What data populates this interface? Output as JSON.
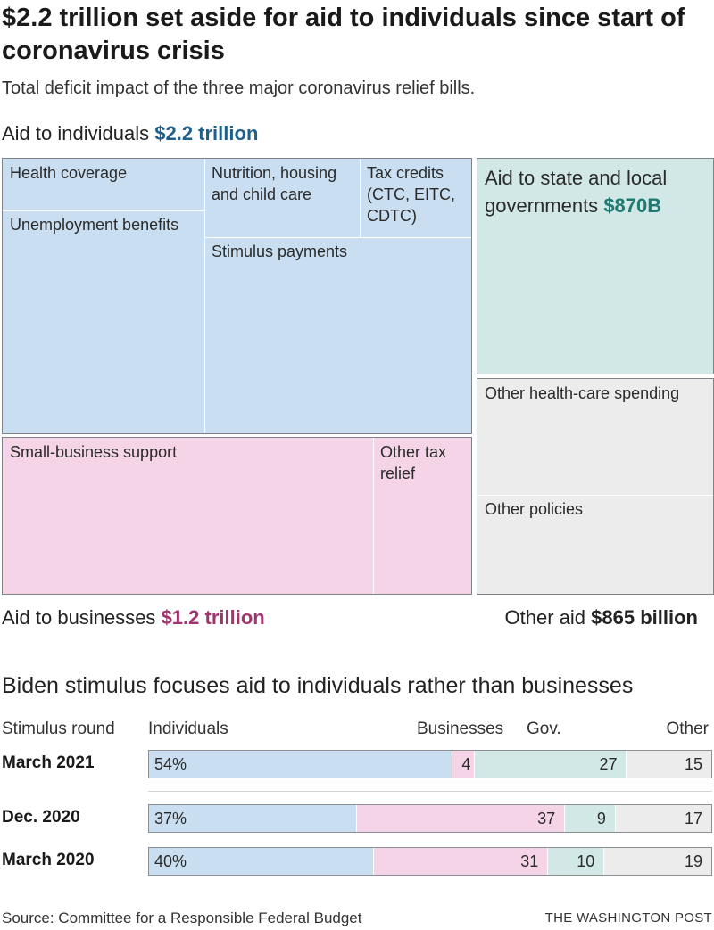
{
  "headline": "$2.2 trillion set aside for aid to individuals since start of coronavirus crisis",
  "subhead": "Total deficit impact of the three major coronavirus relief bills.",
  "colors": {
    "individuals": "#c9dff1",
    "businesses": "#f4d4e6",
    "government": "#d2e8e7",
    "other": "#ececec",
    "individuals_text": "#1f5f8b",
    "businesses_text": "#a2346d",
    "government_text": "#1f7a73",
    "other_text": "#333333"
  },
  "treemap": {
    "individuals": {
      "label": "Aid to individuals",
      "amount": "$2.2 trillion",
      "items": [
        "Health coverage",
        "Unemployment benefits",
        "Nutrition, housing and child care",
        "Tax credits (CTC, EITC, CDTC)",
        "Stimulus payments"
      ]
    },
    "businesses": {
      "label": "Aid to businesses",
      "amount": "$1.2 trillion",
      "items": [
        "Small-business support",
        "Other tax relief"
      ]
    },
    "government": {
      "label": "Aid to state and local governments",
      "amount": "$870B"
    },
    "other": {
      "label": "Other aid",
      "amount": "$865 billion",
      "items": [
        "Other health-care spending",
        "Other policies"
      ]
    }
  },
  "section2": {
    "title": "Biden stimulus focuses aid to individuals rather than businesses",
    "headers": {
      "round": "Stimulus round",
      "individuals": "Individuals",
      "businesses": "Businesses",
      "gov": "Gov.",
      "other": "Other"
    },
    "rows": [
      {
        "label": "March 2021",
        "cells": [
          "54%",
          "4",
          "27",
          "15"
        ]
      },
      {
        "label": "Dec. 2020",
        "cells": [
          "37%",
          "37",
          "9",
          "17"
        ]
      },
      {
        "label": "March 2020",
        "cells": [
          "40%",
          "31",
          "10",
          "19"
        ]
      }
    ]
  },
  "chart_data": {
    "type": "bar",
    "orientation": "horizontal",
    "stacked": true,
    "unit": "percent",
    "title": "Biden stimulus focuses aid to individuals rather than businesses",
    "categories": [
      "March 2021",
      "Dec. 2020",
      "March 2020"
    ],
    "series": [
      {
        "name": "Individuals",
        "values": [
          54,
          37,
          40
        ]
      },
      {
        "name": "Businesses",
        "values": [
          4,
          37,
          31
        ]
      },
      {
        "name": "Gov.",
        "values": [
          27,
          9,
          10
        ]
      },
      {
        "name": "Other",
        "values": [
          15,
          17,
          19
        ]
      }
    ]
  },
  "footer": {
    "source": "Source: Committee for a Responsible Federal Budget",
    "credit": "THE WASHINGTON POST"
  }
}
